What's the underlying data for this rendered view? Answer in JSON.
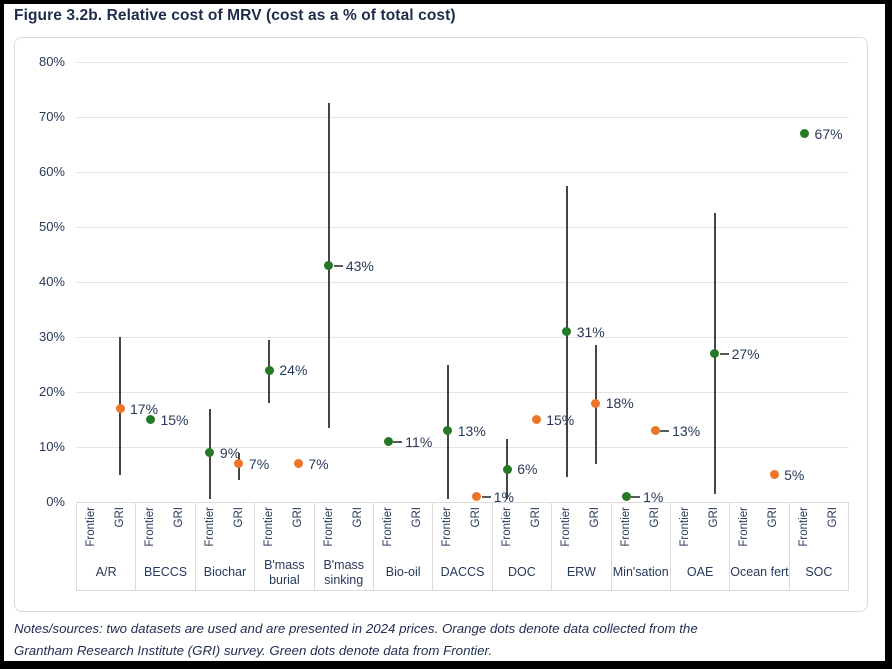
{
  "figure": {
    "title": "Figure 3.2b. Relative cost of MRV (cost as a % of total cost)",
    "notes_line1": "Notes/sources: two datasets are used and are presented in 2024 prices. Orange dots denote data collected from the",
    "notes_line2": "Grantham Research Institute (GRI) survey. Green dots denote data from Frontier."
  },
  "colors": {
    "frontier_green": "#257825",
    "gri_orange": "#ED7428",
    "navy_text": "#27395A",
    "title_navy": "#1F2C4C",
    "error_bar_gray": "#454545",
    "grid_gray": "#E3E3E3"
  },
  "chart_data": {
    "type": "scatter",
    "title": "Figure 3.2b. Relative cost of MRV (cost as a % of total cost)",
    "xlabel": "",
    "ylabel": "cost as a % of total cost",
    "ylim": [
      0,
      80
    ],
    "y_tick_labels": [
      "0%",
      "10%",
      "20%",
      "30%",
      "40%",
      "50%",
      "60%",
      "70%",
      "80%"
    ],
    "grid": "horizontal",
    "legend": {
      "orange": "GRI survey data",
      "green": "Frontier data",
      "position": "in notes below chart"
    },
    "sub_columns": [
      "Frontier",
      "GRI"
    ],
    "categories": [
      {
        "name": "A/R",
        "lines": [
          "A/R"
        ]
      },
      {
        "name": "BECCS",
        "lines": [
          "BECCS"
        ]
      },
      {
        "name": "Biochar",
        "lines": [
          "Biochar"
        ]
      },
      {
        "name": "B'mass burial",
        "lines": [
          "B'mass",
          "burial"
        ]
      },
      {
        "name": "B'mass sinking",
        "lines": [
          "B'mass",
          "sinking"
        ]
      },
      {
        "name": "Bio-oil",
        "lines": [
          "Bio-oil"
        ]
      },
      {
        "name": "DACCS",
        "lines": [
          "DACCS"
        ]
      },
      {
        "name": "DOC",
        "lines": [
          "DOC"
        ]
      },
      {
        "name": "ERW",
        "lines": [
          "ERW"
        ]
      },
      {
        "name": "Min'sation",
        "lines": [
          "Min'sation"
        ]
      },
      {
        "name": "OAE",
        "lines": [
          "OAE"
        ]
      },
      {
        "name": "Ocean fert",
        "lines": [
          "Ocean fert"
        ]
      },
      {
        "name": "SOC",
        "lines": [
          "SOC"
        ]
      }
    ],
    "points": [
      {
        "category": "A/R",
        "column": "GRI",
        "source": "GRI",
        "value": 17,
        "label": "17%",
        "range": [
          5,
          30
        ],
        "leader": false
      },
      {
        "category": "BECCS",
        "column": "Frontier",
        "source": "Frontier",
        "value": 15,
        "label": "15%",
        "range": null,
        "leader": false
      },
      {
        "category": "Biochar",
        "column": "Frontier",
        "source": "Frontier",
        "value": 9,
        "label": "9%",
        "range": [
          0.5,
          17
        ],
        "leader": false
      },
      {
        "category": "Biochar",
        "column": "GRI",
        "source": "GRI",
        "value": 7,
        "label": "7%",
        "range": [
          4,
          9
        ],
        "leader": false
      },
      {
        "category": "B'mass burial",
        "column": "Frontier",
        "source": "Frontier",
        "value": 24,
        "label": "24%",
        "range": [
          18,
          29.5
        ],
        "leader": false
      },
      {
        "category": "B'mass burial",
        "column": "GRI",
        "source": "GRI",
        "value": 7,
        "label": "7%",
        "range": null,
        "leader": false
      },
      {
        "category": "B'mass sinking",
        "column": "Frontier",
        "source": "Frontier",
        "value": 43,
        "label": "43%",
        "range": [
          13.5,
          72.5
        ],
        "leader": true
      },
      {
        "category": "Bio-oil",
        "column": "Frontier",
        "source": "Frontier",
        "value": 11,
        "label": "11%",
        "range": null,
        "leader": true
      },
      {
        "category": "DACCS",
        "column": "Frontier",
        "source": "Frontier",
        "value": 13,
        "label": "13%",
        "range": [
          0.5,
          25
        ],
        "leader": false
      },
      {
        "category": "DACCS",
        "column": "GRI",
        "source": "GRI",
        "value": 1,
        "label": "1%",
        "range": null,
        "leader": true
      },
      {
        "category": "DOC",
        "column": "Frontier",
        "source": "Frontier",
        "value": 6,
        "label": "6%",
        "range": [
          0.5,
          11.5
        ],
        "leader": false
      },
      {
        "category": "DOC",
        "column": "GRI",
        "source": "GRI",
        "value": 15,
        "label": "15%",
        "range": null,
        "leader": false
      },
      {
        "category": "ERW",
        "column": "Frontier",
        "source": "Frontier",
        "value": 31,
        "label": "31%",
        "range": [
          4.5,
          57.5
        ],
        "leader": false
      },
      {
        "category": "ERW",
        "column": "GRI",
        "source": "GRI",
        "value": 18,
        "label": "18%",
        "range": [
          7,
          28.5
        ],
        "leader": false
      },
      {
        "category": "Min'sation",
        "column": "Frontier",
        "source": "Frontier",
        "value": 1,
        "label": "1%",
        "range": null,
        "leader": true
      },
      {
        "category": "Min'sation",
        "column": "GRI",
        "source": "GRI",
        "value": 13,
        "label": "13%",
        "range": null,
        "leader": true
      },
      {
        "category": "OAE",
        "column": "GRI",
        "source": "Frontier",
        "value": 27,
        "label": "27%",
        "range": [
          1.5,
          52.5
        ],
        "leader": true
      },
      {
        "category": "Ocean fert",
        "column": "GRI",
        "source": "GRI",
        "value": 5,
        "label": "5%",
        "range": null,
        "leader": false
      },
      {
        "category": "SOC",
        "column": "Frontier",
        "source": "Frontier",
        "value": 67,
        "label": "67%",
        "range": null,
        "leader": false
      }
    ]
  }
}
